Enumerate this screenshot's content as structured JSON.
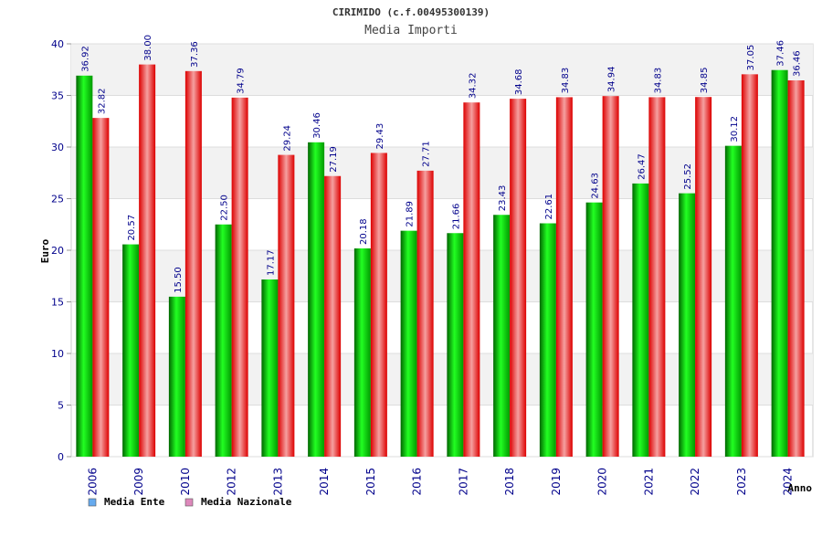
{
  "chart_data": {
    "type": "bar",
    "title": "CIRIMIDO (c.f.00495300139)",
    "subtitle": "Media Importi",
    "ylabel": "Euro",
    "xlabel": "Anno",
    "ylim": [
      0,
      40
    ],
    "yticks": [
      0,
      5,
      10,
      15,
      20,
      25,
      30,
      35,
      40
    ],
    "grid": true,
    "legend_position": "bottom-left",
    "categories": [
      "2006",
      "2009",
      "2010",
      "2012",
      "2013",
      "2014",
      "2015",
      "2016",
      "2017",
      "2018",
      "2019",
      "2020",
      "2021",
      "2022",
      "2023",
      "2024"
    ],
    "series": [
      {
        "name": "Media Ente",
        "color": "#00cc00",
        "legend_color": "#66aaee",
        "values": [
          36.92,
          20.57,
          15.5,
          22.5,
          17.17,
          30.46,
          20.18,
          21.89,
          21.66,
          23.43,
          22.61,
          24.63,
          26.47,
          25.52,
          30.12,
          37.46
        ],
        "labels": [
          "36.92",
          "20.57",
          "15.50",
          "22.50",
          "17.17",
          "30.46",
          "20.18",
          "21.89",
          "21.66",
          "23.43",
          "22.61",
          "24.63",
          "26.47",
          "25.52",
          "30.12",
          "37.46"
        ]
      },
      {
        "name": "Media Nazionale",
        "color": "#ee2222",
        "legend_color": "#dd88bb",
        "values": [
          32.82,
          38.0,
          37.36,
          34.79,
          29.24,
          27.19,
          29.43,
          27.71,
          34.32,
          34.68,
          34.83,
          34.94,
          34.83,
          34.85,
          37.05,
          36.46
        ],
        "labels": [
          "32.82",
          "38.00",
          "37.36",
          "34.79",
          "29.24",
          "27.19",
          "29.43",
          "27.71",
          "34.32",
          "34.68",
          "34.83",
          "34.94",
          "34.83",
          "34.85",
          "37.05",
          "36.46"
        ]
      }
    ]
  }
}
